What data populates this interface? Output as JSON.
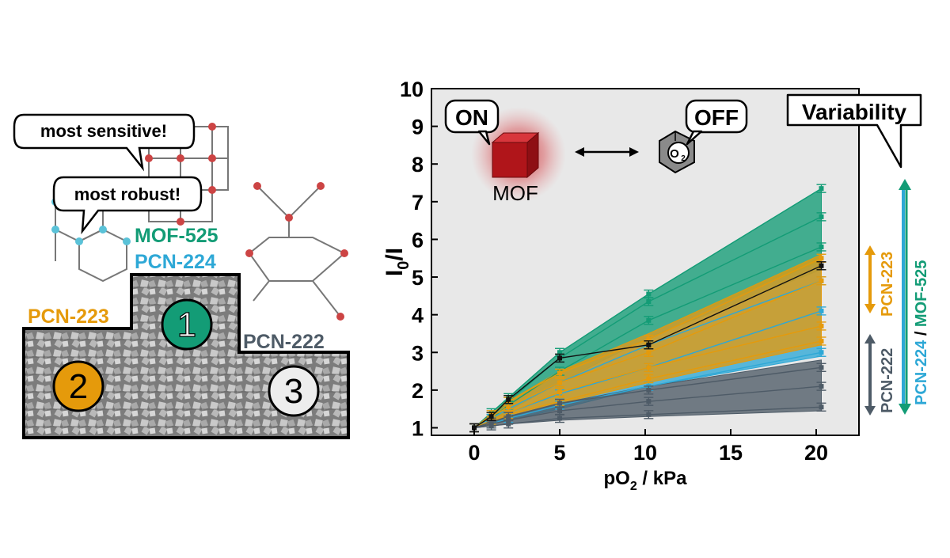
{
  "colors": {
    "mof525": "#139C76",
    "pcn224": "#2EA8D6",
    "pcn223": "#E59A0B",
    "pcn222": "#4E5B67",
    "plot_bg": "#E8E8E8",
    "mof_on": "#B0151A",
    "mof_off": "#8A8A8A"
  },
  "podium": {
    "bubble_sensitive": "most sensitive!",
    "bubble_robust": "most robust!",
    "label_mof525": "MOF-525",
    "label_pcn224": "PCN-224",
    "label_pcn223": "PCN-223",
    "label_pcn222": "PCN-222",
    "place_1": "1",
    "place_2": "2",
    "place_3": "3"
  },
  "inset": {
    "on_label": "ON",
    "off_label": "OFF",
    "mof_label": "MOF",
    "o2_label": "O",
    "o2_sub": "2"
  },
  "variability": {
    "title": "Variability",
    "pcn223_label": "PCN-223",
    "pcn222_label": "PCN-222",
    "pcn224_label": "PCN-224",
    "slash": " / ",
    "mof525_label": "MOF-525"
  },
  "chart_data": {
    "type": "area",
    "xlabel_main": "pO",
    "xlabel_sub": "2",
    "xlabel_tail": " / kPa",
    "ylabel_main": "I",
    "ylabel_sub": "0",
    "ylabel_tail": "/I",
    "xlim": [
      -2.5,
      22.5
    ],
    "ylim": [
      0.8,
      10
    ],
    "xticks": [
      0,
      5,
      10,
      15,
      20
    ],
    "yticks": [
      1,
      2,
      3,
      4,
      5,
      6,
      7,
      8,
      9,
      10
    ],
    "grid": false,
    "x": [
      0,
      1,
      2,
      5,
      10.2,
      20.3
    ],
    "bands": [
      {
        "group": "MOF-525",
        "upper": [
          1.0,
          1.4,
          1.8,
          3.0,
          4.55,
          7.35
        ],
        "lower": [
          1.0,
          1.2,
          1.45,
          2.2,
          3.4,
          5.2
        ]
      },
      {
        "group": "PCN-224",
        "upper": [
          1.0,
          1.3,
          1.6,
          2.4,
          3.5,
          5.4
        ],
        "lower": [
          1.0,
          1.1,
          1.2,
          1.5,
          2.1,
          2.9
        ]
      },
      {
        "group": "PCN-223",
        "upper": [
          1.0,
          1.35,
          1.7,
          2.5,
          3.5,
          5.6
        ],
        "lower": [
          1.0,
          1.15,
          1.3,
          1.65,
          2.2,
          3.2
        ]
      },
      {
        "group": "PCN-222",
        "upper": [
          1.0,
          1.15,
          1.3,
          1.65,
          2.1,
          2.8
        ],
        "lower": [
          1.0,
          1.05,
          1.1,
          1.2,
          1.3,
          1.45
        ]
      }
    ],
    "series": [
      {
        "group": "MOF-525",
        "values": [
          1.0,
          1.4,
          1.8,
          3.0,
          4.55,
          7.35
        ]
      },
      {
        "group": "MOF-525",
        "values": [
          1.0,
          1.3,
          1.7,
          2.85,
          4.35,
          6.6
        ]
      },
      {
        "group": "MOF-525",
        "values": [
          1.0,
          1.25,
          1.6,
          2.5,
          3.85,
          5.8
        ]
      },
      {
        "group": "PCN-224",
        "values": [
          1.0,
          1.25,
          1.5,
          2.2,
          3.2,
          4.9
        ]
      },
      {
        "group": "PCN-224",
        "values": [
          1.0,
          1.2,
          1.4,
          1.9,
          2.6,
          4.1
        ]
      },
      {
        "group": "PCN-224",
        "values": [
          1.0,
          1.1,
          1.25,
          1.6,
          2.1,
          3.0
        ]
      },
      {
        "group": "PCN-223",
        "values": [
          1.0,
          1.35,
          1.7,
          2.45,
          3.35,
          5.5
        ]
      },
      {
        "group": "PCN-223",
        "values": [
          1.0,
          1.3,
          1.55,
          2.2,
          3.0,
          4.9
        ]
      },
      {
        "group": "PCN-223",
        "values": [
          1.0,
          1.2,
          1.4,
          1.95,
          2.6,
          3.7
        ]
      },
      {
        "group": "PCN-223",
        "values": [
          1.0,
          1.15,
          1.35,
          1.7,
          2.3,
          3.3
        ]
      },
      {
        "group": "PCN-222",
        "values": [
          1.0,
          1.15,
          1.3,
          1.65,
          2.0,
          2.6
        ]
      },
      {
        "group": "PCN-222",
        "values": [
          1.0,
          1.1,
          1.2,
          1.45,
          1.7,
          2.1
        ]
      },
      {
        "group": "PCN-222",
        "values": [
          1.0,
          1.05,
          1.1,
          1.25,
          1.35,
          1.55
        ]
      },
      {
        "group": "black",
        "values": [
          1.0,
          1.3,
          1.75,
          2.85,
          3.2,
          5.3
        ]
      }
    ]
  }
}
